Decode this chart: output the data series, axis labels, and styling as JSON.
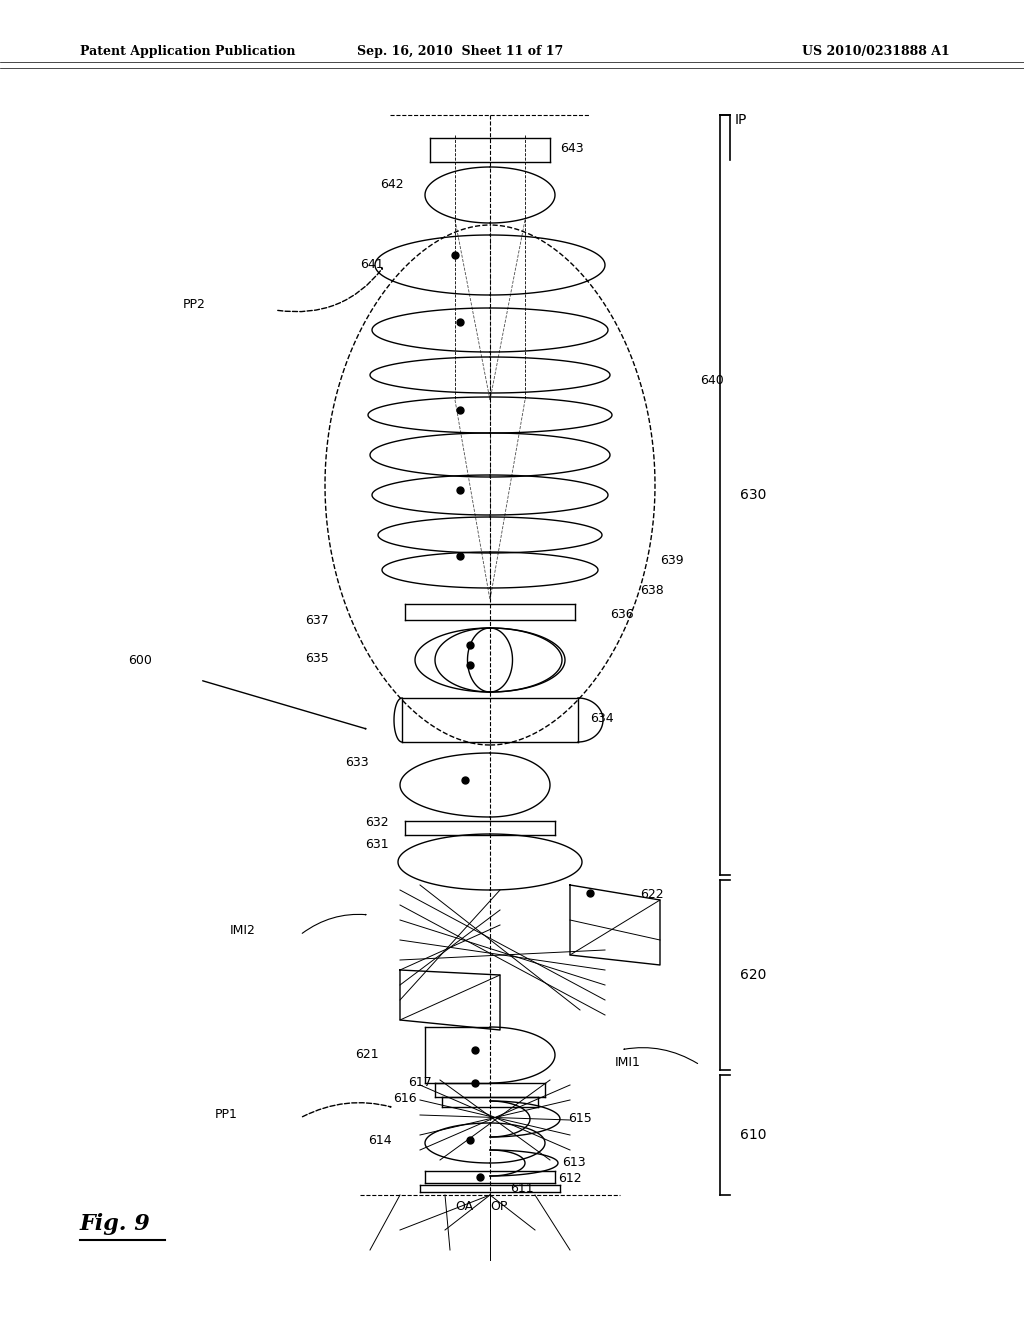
{
  "title_left": "Patent Application Publication",
  "title_center": "Sep. 16, 2010  Sheet 11 of 17",
  "title_right": "US 2010/0231888 A1",
  "fig_label": "Fig. 9",
  "background": "#ffffff"
}
